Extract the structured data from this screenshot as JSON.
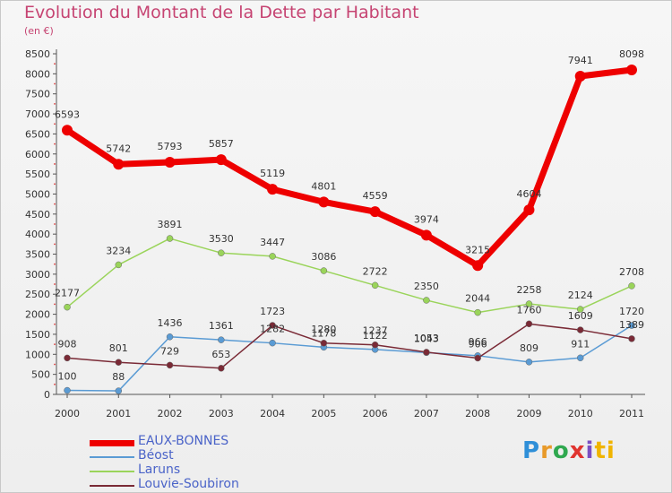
{
  "header": {
    "title": "Evolution du Montant de la Dette par Habitant",
    "subtitle": "(en €)"
  },
  "logo": {
    "text": "Proxiti",
    "letters": [
      "P",
      "r",
      "o",
      "x",
      "i",
      "ti"
    ]
  },
  "chart_data": {
    "type": "line",
    "title": "Evolution du Montant de la Dette par Habitant",
    "subtitle": "(en €)",
    "xlabel": "",
    "ylabel": "",
    "x": [
      "2000",
      "2001",
      "2002",
      "2003",
      "2004",
      "2005",
      "2006",
      "2007",
      "2008",
      "2009",
      "2010",
      "2011"
    ],
    "ylim": [
      0,
      8500
    ],
    "yticks": [
      0,
      500,
      1000,
      1500,
      2000,
      2500,
      3000,
      3500,
      4000,
      4500,
      5000,
      5500,
      6000,
      6500,
      7000,
      7500,
      8000,
      8500
    ],
    "grid": false,
    "legend_position": "bottom-left",
    "series": [
      {
        "name": "EAUX-BONNES",
        "color": "#ee0000",
        "width": 7,
        "radius": 6,
        "values": [
          6593,
          5742,
          5793,
          5857,
          5119,
          4801,
          4559,
          3974,
          3215,
          4604,
          7941,
          8098
        ],
        "labels": [
          "6593",
          "5742",
          "5793",
          "5857",
          "5119",
          "4801",
          "4559",
          "3974",
          "3215",
          "4604",
          "7941",
          "8098"
        ]
      },
      {
        "name": "Béost",
        "color": "#5a9bd4",
        "width": 1.5,
        "radius": 3.5,
        "values": [
          100,
          88,
          1436,
          1361,
          1282,
          1178,
          1122,
          1043,
          966,
          809,
          911,
          1720
        ],
        "labels": [
          "100",
          "88",
          "1436",
          "1361",
          "1282",
          "1178",
          "1122",
          "1043",
          "966",
          "809",
          "911",
          "1720"
        ]
      },
      {
        "name": "Laruns",
        "color": "#9ad45a",
        "width": 1.5,
        "radius": 3.5,
        "values": [
          2177,
          3234,
          3891,
          3530,
          3447,
          3086,
          2722,
          2350,
          2044,
          2258,
          2124,
          2708
        ],
        "labels": [
          "2177",
          "3234",
          "3891",
          "3530",
          "3447",
          "3086",
          "2722",
          "2350",
          "2044",
          "2258",
          "2124",
          "2708"
        ]
      },
      {
        "name": "Louvie-Soubiron",
        "color": "#7a2a36",
        "width": 1.5,
        "radius": 3.5,
        "values": [
          908,
          801,
          729,
          653,
          1723,
          1280,
          1237,
          1053,
          906,
          1760,
          1609,
          1389
        ],
        "labels": [
          "908",
          "801",
          "729",
          "653",
          "1723",
          "1280",
          "1237",
          "1053",
          "906",
          "1760",
          "1609",
          "1389"
        ]
      }
    ]
  }
}
